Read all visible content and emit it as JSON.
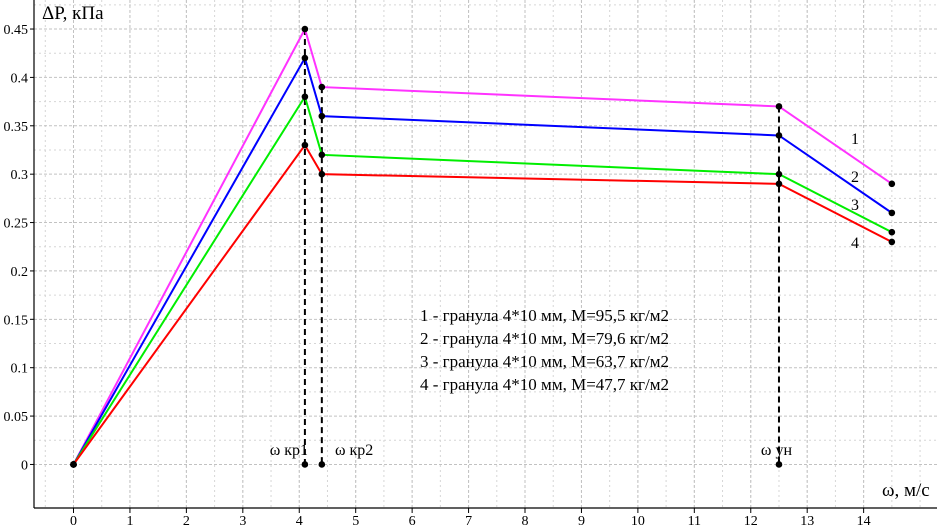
{
  "chart_data": {
    "type": "line",
    "ylabel": "ΔP, кПа",
    "xlabel": "ω, м/с",
    "xlim": [
      -0.7,
      15.3
    ],
    "ylim": [
      -0.045,
      0.48
    ],
    "x_ticks": [
      0,
      1,
      2,
      3,
      4,
      5,
      6,
      7,
      8,
      9,
      10,
      11,
      12,
      13,
      14
    ],
    "y_ticks": [
      0,
      0.05,
      0.1,
      0.15,
      0.2,
      0.25,
      0.3,
      0.35,
      0.4,
      0.45
    ],
    "x_tick_labels": [
      "0",
      "1",
      "2",
      "3",
      "4",
      "5",
      "6",
      "7",
      "8",
      "9",
      "10",
      "11",
      "12",
      "13",
      "14"
    ],
    "y_tick_labels": [
      "0",
      "0.05",
      "0.1",
      "0.15",
      "0.2",
      "0.25",
      "0.3",
      "0.35",
      "0.4",
      "0.45"
    ],
    "grid": true,
    "x": [
      0,
      4.1,
      4.4,
      12.5,
      14.5
    ],
    "series": [
      {
        "name": "1",
        "color": "#ff33ff",
        "values": [
          0,
          0.45,
          0.39,
          0.37,
          0.29
        ]
      },
      {
        "name": "2",
        "color": "#0000ff",
        "values": [
          0,
          0.42,
          0.36,
          0.34,
          0.26
        ]
      },
      {
        "name": "3",
        "color": "#00ee00",
        "values": [
          0,
          0.38,
          0.32,
          0.3,
          0.24
        ]
      },
      {
        "name": "4",
        "color": "#ff0000",
        "values": [
          0,
          0.33,
          0.3,
          0.29,
          0.23
        ]
      }
    ],
    "extra_points": [
      {
        "x": 4.1,
        "y": 0
      },
      {
        "x": 4.4,
        "y": 0
      },
      {
        "x": 12.5,
        "y": 0
      }
    ],
    "vertical_markers": [
      {
        "x": 4.1,
        "label": "ω кр1"
      },
      {
        "x": 4.4,
        "label": "ω кр2"
      },
      {
        "x": 12.5,
        "label": "ω ун"
      }
    ],
    "legend": [
      "1 - гранула 4*10 мм, М=95,5 кг/м2",
      "2 - гранула 4*10 мм, М=79,6 кг/м2",
      "3 - гранула 4*10 мм, М=63,7 кг/м2",
      "4 - гранула 4*10 мм, М=47,7 кг/м2"
    ],
    "legend_placement": "center"
  }
}
